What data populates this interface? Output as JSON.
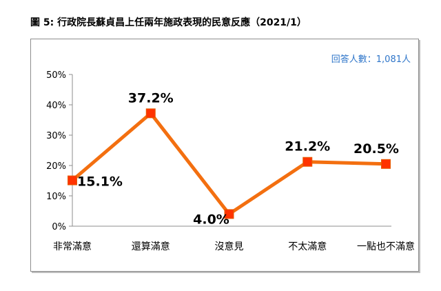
{
  "figure": {
    "title": "圖 5:  行政院長蘇貞昌上任兩年施政表現的民意反應（2021/1）",
    "note": "回答人數：1,081人"
  },
  "chart_data": {
    "type": "line",
    "categories": [
      "非常滿意",
      "還算滿意",
      "沒意見",
      "不太滿意",
      "一點也不滿意"
    ],
    "series": [
      {
        "values": [
          15.1,
          37.2,
          4.0,
          21.2,
          20.5
        ]
      }
    ],
    "data_labels": [
      "15.1%",
      "37.2%",
      "4.0%",
      "21.2%",
      "20.5%"
    ],
    "ylim": [
      0,
      50
    ],
    "yticks": [
      0,
      10,
      20,
      30,
      40,
      50
    ],
    "ytick_labels": [
      "0%",
      "10%",
      "20%",
      "30%",
      "40%",
      "50%"
    ],
    "grid": false,
    "legend": "none",
    "colors": {
      "line": "#f36f10",
      "marker": "#ff3300",
      "note": "#2e75c9"
    }
  }
}
